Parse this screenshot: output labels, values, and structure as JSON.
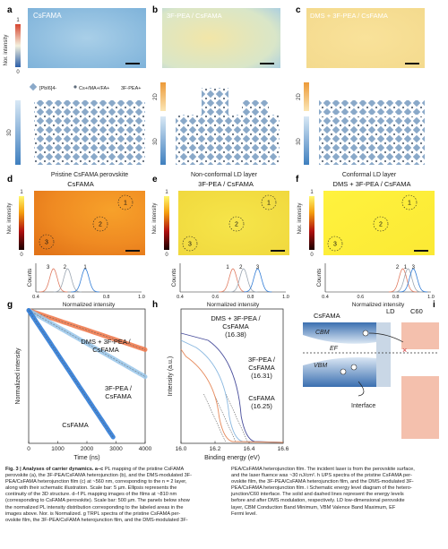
{
  "panels": {
    "a": {
      "letter": "a",
      "map_title": "CsFAMA",
      "cbar_axis": "Nor. intensity",
      "cbar_max": "1",
      "cbar_min": "0",
      "legend": [
        "[PbI6]4-",
        "Cs+/MA+/FA+",
        "3F-PEA+"
      ],
      "axis_3d": "3D",
      "caption": "Pristine CsFAMA perovskite"
    },
    "b": {
      "letter": "b",
      "map_title": "3F-PEA / CsFAMA",
      "axis_2d": "2D",
      "axis_3d": "3D",
      "caption": "Non-conformal LD layer"
    },
    "c": {
      "letter": "c",
      "map_title": "DMS + 3F-PEA / CsFAMA",
      "axis_2d": "2D",
      "axis_3d": "3D",
      "caption": "Conformal LD layer"
    },
    "d": {
      "letter": "d",
      "title": "CsFAMA",
      "cbar_axis": "Nor. intensity",
      "cbar_max": "1",
      "cbar_min": "0",
      "circles": [
        "1",
        "2",
        "3"
      ],
      "hist_ylabel": "Counts",
      "hist_xlabel": "Normalized intensity",
      "hist_ticks": [
        "0.4",
        "0.6",
        "0.8",
        "1.0"
      ],
      "peak_labels": [
        "3",
        "2",
        "1"
      ]
    },
    "e": {
      "letter": "e",
      "title": "3F-PEA / CsFAMA",
      "cbar_axis": "Nor. intensity",
      "cbar_max": "1",
      "cbar_min": "0",
      "circles": [
        "1",
        "2",
        "3"
      ],
      "hist_ylabel": "Counts",
      "hist_xlabel": "Normalized intensity",
      "hist_ticks": [
        "0.4",
        "0.6",
        "0.8",
        "1.0"
      ],
      "peak_labels": [
        "1",
        "2",
        "3"
      ]
    },
    "f": {
      "letter": "f",
      "title": "DMS + 3F-PEA / CsFAMA",
      "cbar_axis": "Nor. intensity",
      "cbar_max": "1",
      "cbar_min": "0",
      "circles": [
        "1",
        "2",
        "3"
      ],
      "hist_ylabel": "Counts",
      "hist_xlabel": "Normalized intensity",
      "hist_ticks": [
        "0.4",
        "0.6",
        "0.8",
        "1.0"
      ],
      "peak_labels": [
        "2",
        "1",
        "3"
      ]
    },
    "i": {
      "letter": "i",
      "left": "CsFAMA",
      "ld": "LD",
      "c60": "C60",
      "cbm": "CBM",
      "ef": "EF",
      "vbm": "VBM",
      "interface": "Interface"
    }
  },
  "chart_data": [
    {
      "panel": "g",
      "type": "line",
      "ylabel": "Normalized intensity",
      "xlabel": "Time (ns)",
      "xlim": [
        0,
        4000
      ],
      "xticks": [
        "0",
        "1000",
        "2000",
        "3000",
        "4000"
      ],
      "yscale": "log",
      "series": [
        {
          "name": "DMS + 3F-PEA / CsFAMA",
          "color": "#f07b4f",
          "x": [
            0,
            4000
          ],
          "y": [
            1.0,
            0.24
          ]
        },
        {
          "name": "3F-PEA / CsFAMA",
          "color": "#9cc8ea",
          "x": [
            0,
            4000
          ],
          "y": [
            1.0,
            0.09
          ]
        },
        {
          "name": "CsFAMA",
          "color": "#2f7bd6",
          "x": [
            0,
            2900
          ],
          "y": [
            1.0,
            0.01
          ]
        }
      ]
    },
    {
      "panel": "h",
      "type": "line",
      "ylabel": "Intensity (a.u.)",
      "xlabel": "Binding energy (eV)",
      "xlim": [
        16.0,
        16.6
      ],
      "xticks": [
        "16.0",
        "16.2",
        "16.4",
        "16.6"
      ],
      "series": [
        {
          "name": "DMS + 3F-PEA / CsFAMA",
          "value": "(16.38)",
          "color": "#4a4f9c",
          "cutoff": 16.38
        },
        {
          "name": "3F-PEA / CsFAMA",
          "value": "(16.31)",
          "color": "#8ab8e0",
          "cutoff": 16.31
        },
        {
          "name": "CsFAMA",
          "value": "(16.25)",
          "color": "#e68a5c",
          "cutoff": 16.25
        }
      ]
    }
  ],
  "caption": {
    "left": [
      {
        "b": "Fig. 3 | Analyses of carrier dynamics. a–c",
        " t": ""
      },
      "PL mapping of the pristine CsFAMA",
      "perovskite (a), the 3F-PEA/CsFAMA heterojunction (b), and the DMS-modulated 3F-",
      "PEA/CsFAMA heterojunction film (c) at ~560 nm, corresponding to the n = 2 layer,",
      "along with their schematic illustration. Scale bar: 5 µm. Ellipsis represents the",
      "continuity of the 3D structure. d–f PL mapping images of the films at ~810 nm",
      "(corresponding to CsFAMA perovskite). Scale bar: 500 µm. The panels below show",
      "the normalized PL intensity distribution corresponding to the labeled areas in the",
      "images above. Nor. is Normalized. g TRPL spectra of the pristine CsFAMA per-",
      "ovskite film, the 3F-PEA/CsFAMA heterojunction film, and the DMS-modulated 3F-"
    ],
    "right": [
      "PEA/CsFAMA heterojunction film. The incident laser is from the perovskite surface,",
      "and the laser fluence was ~30 nJ/cm². h UPS spectra of the pristine CsFAMA per-",
      "ovskite film, the 3F-PEA/CsFAMA heterojunction film, and the DMS-modulated 3F-",
      "PEA/CsFAMA heterojunction film. i Schematic energy level diagram of the hetero-",
      "junction/C60 interface. The solid and dashed lines represent the energy levels",
      "before and after DMS modulation, respectively. LD low-dimensional perovskite",
      "layer, CBM Conduction Band Minimum, VBM Valence Band Maximum, EF",
      "Fermi level."
    ]
  }
}
